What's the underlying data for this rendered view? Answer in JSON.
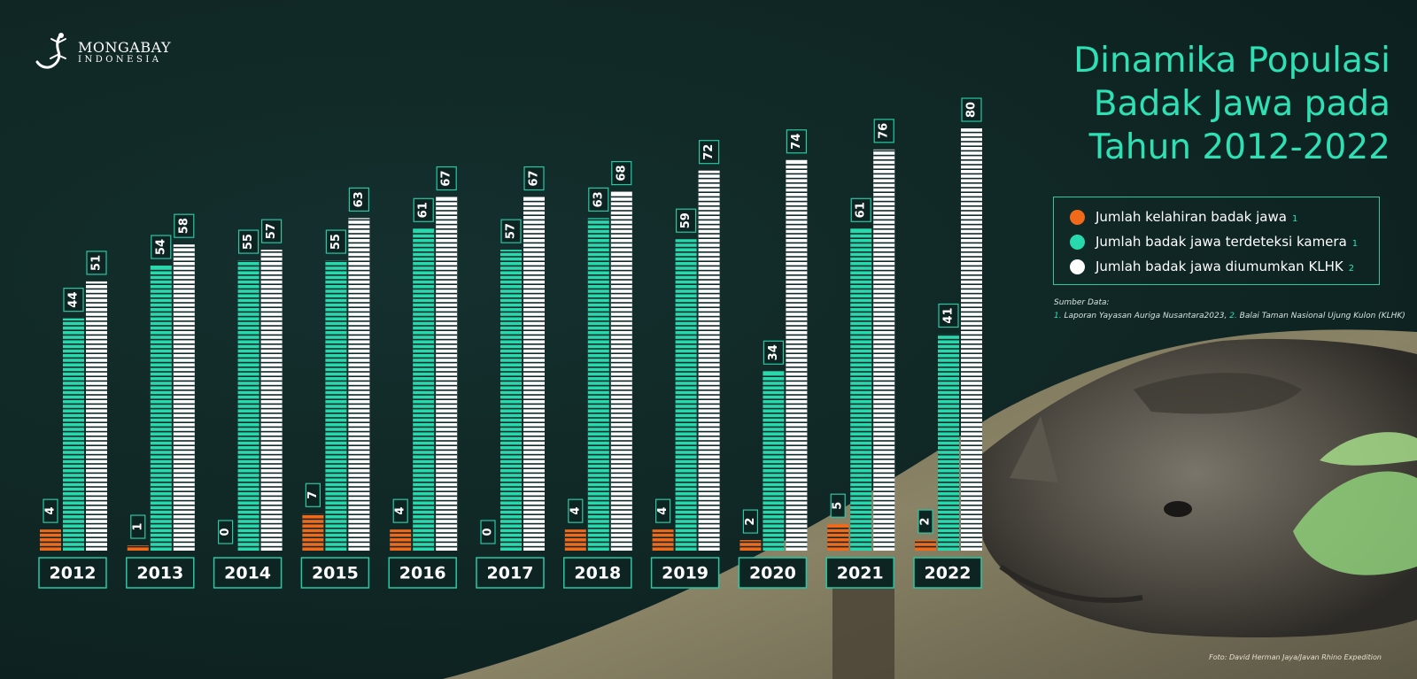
{
  "brand": {
    "name": "MONGABAY",
    "sub": "INDONESIA"
  },
  "title_lines": [
    "Dinamika Populasi",
    "Badak Jawa pada",
    "Tahun 2012-2022"
  ],
  "legend": [
    {
      "label": "Jumlah kelahiran badak jawa",
      "ref": "1",
      "color": "#f06a1a"
    },
    {
      "label": "Jumlah badak jawa terdeteksi kamera",
      "ref": "1",
      "color": "#27d9ad"
    },
    {
      "label": "Jumlah badak jawa diumumkan KLHK",
      "ref": "2",
      "color": "#ffffff"
    }
  ],
  "source": {
    "heading": "Sumber Data:",
    "n1": "1.",
    "s1": "Laporan Yayasan Auriga Nusantara2023,",
    "n2": "2.",
    "s2": "Balai Taman Nasional Ujung Kulon (KLHK)"
  },
  "photo_credit": "Foto: David Herman Jaya/Javan Rhino Expedition",
  "chart_data": {
    "type": "bar",
    "categories": [
      "2012",
      "2013",
      "2014",
      "2015",
      "2016",
      "2017",
      "2018",
      "2019",
      "2020",
      "2021",
      "2022"
    ],
    "series": [
      {
        "name": "Jumlah kelahiran badak jawa",
        "color": "#f06a1a",
        "values": [
          4,
          1,
          0,
          7,
          4,
          0,
          4,
          4,
          2,
          5,
          2
        ]
      },
      {
        "name": "Jumlah badak jawa terdeteksi kamera",
        "color": "#27d9ad",
        "values": [
          44,
          54,
          55,
          55,
          61,
          57,
          63,
          59,
          34,
          61,
          41
        ]
      },
      {
        "name": "Jumlah badak jawa diumumkan KLHK",
        "color": "#ffffff",
        "values": [
          51,
          58,
          57,
          63,
          67,
          67,
          68,
          72,
          74,
          76,
          80
        ]
      }
    ],
    "ylim": [
      0,
      80
    ],
    "title": "Dinamika Populasi Badak Jawa pada Tahun 2012-2022"
  }
}
